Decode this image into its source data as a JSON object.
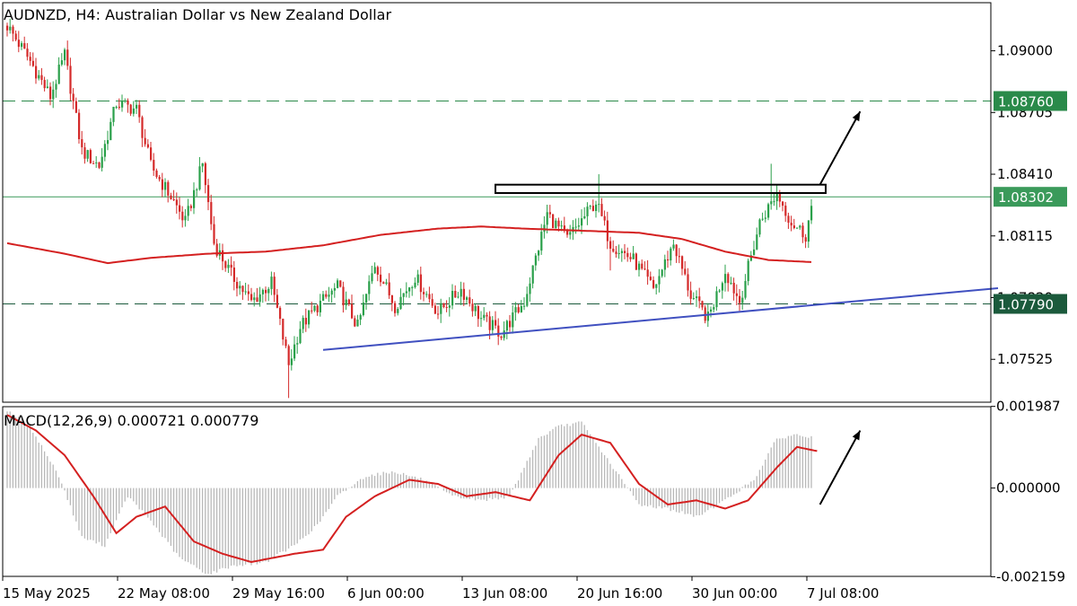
{
  "chart_data": {
    "type": "candlestick",
    "title": "AUDNZD, H4:  Australian Dollar vs New Zealand Dollar",
    "symbol": "AUDNZD",
    "timeframe": "H4",
    "description": "Australian Dollar vs New Zealand Dollar",
    "ylim": [
      1.0732,
      1.0923
    ],
    "y_ticks": [
      "1.09000",
      "1.08705",
      "1.08410",
      "1.08115",
      "1.07820",
      "1.07525"
    ],
    "y_tick_values": [
      1.09,
      1.08705,
      1.0841,
      1.08115,
      1.0782,
      1.07525
    ],
    "x_ticks": [
      "15 May 2025",
      "22 May 08:00",
      "29 May 16:00",
      "6 Jun 00:00",
      "13 Jun 08:00",
      "20 Jun 16:00",
      "30 Jun 00:00",
      "7 Jul 08:00"
    ],
    "x_tick_bars": [
      0,
      40,
      80,
      120,
      160,
      200,
      240,
      280
    ],
    "bar_count": 280,
    "horizontal_levels": [
      {
        "value": 1.0876,
        "label": "1.08760",
        "style": "dashed",
        "color": "#2a8a4a"
      },
      {
        "value": 1.0779,
        "label": "1.07790",
        "style": "dashed",
        "color": "#1b5a3c"
      },
      {
        "value": 1.08302,
        "label": "1.08302",
        "style": "solid",
        "color": "#3a9a5a"
      }
    ],
    "resistance_box": {
      "bar_start": 170,
      "bar_end": 285,
      "y_top": 1.0836,
      "y_bottom": 1.0832
    },
    "trendline": {
      "bar_start": 110,
      "y_start": 1.0757,
      "bar_end": 345,
      "y_end": 1.07865,
      "color": "#4050c0"
    },
    "moving_average": {
      "color": "#d42020",
      "points": [
        [
          0,
          1.0808
        ],
        [
          20,
          1.0803
        ],
        [
          35,
          1.07985
        ],
        [
          50,
          1.0801
        ],
        [
          70,
          1.0803
        ],
        [
          90,
          1.0804
        ],
        [
          110,
          1.0807
        ],
        [
          130,
          1.0812
        ],
        [
          150,
          1.0815
        ],
        [
          165,
          1.0816
        ],
        [
          180,
          1.0815
        ],
        [
          200,
          1.0814
        ],
        [
          220,
          1.0813
        ],
        [
          235,
          1.081
        ],
        [
          250,
          1.0804
        ],
        [
          265,
          1.08
        ],
        [
          280,
          1.0799
        ]
      ]
    },
    "candles": {
      "up_color": "#2aa04a",
      "down_color": "#d42a2a",
      "anchors": [
        [
          0,
          1.0912
        ],
        [
          8,
          1.0895
        ],
        [
          15,
          1.0878
        ],
        [
          20,
          1.0898
        ],
        [
          26,
          1.0852
        ],
        [
          32,
          1.0845
        ],
        [
          38,
          1.0875
        ],
        [
          45,
          1.0872
        ],
        [
          50,
          1.0845
        ],
        [
          58,
          1.0828
        ],
        [
          62,
          1.0818
        ],
        [
          68,
          1.0846
        ],
        [
          72,
          1.0808
        ],
        [
          78,
          1.0793
        ],
        [
          85,
          1.078
        ],
        [
          92,
          1.0789
        ],
        [
          98,
          1.075
        ],
        [
          102,
          1.0768
        ],
        [
          108,
          1.0778
        ],
        [
          115,
          1.0787
        ],
        [
          122,
          1.0768
        ],
        [
          128,
          1.0798
        ],
        [
          135,
          1.0778
        ],
        [
          142,
          1.0792
        ],
        [
          150,
          1.0775
        ],
        [
          158,
          1.0786
        ],
        [
          165,
          1.0772
        ],
        [
          172,
          1.0765
        ],
        [
          180,
          1.078
        ],
        [
          188,
          1.0822
        ],
        [
          195,
          1.081
        ],
        [
          205,
          1.0828
        ],
        [
          210,
          1.0808
        ],
        [
          218,
          1.08
        ],
        [
          225,
          1.0786
        ],
        [
          232,
          1.0808
        ],
        [
          238,
          1.0783
        ],
        [
          244,
          1.0772
        ],
        [
          250,
          1.0795
        ],
        [
          255,
          1.078
        ],
        [
          262,
          1.0818
        ],
        [
          268,
          1.0832
        ],
        [
          273,
          1.0818
        ],
        [
          278,
          1.0812
        ],
        [
          280,
          1.0825
        ]
      ],
      "lows": [
        [
          98,
          1.0734
        ],
        [
          210,
          1.0795
        ],
        [
          244,
          1.0768
        ]
      ],
      "highs": [
        [
          206,
          1.0841
        ],
        [
          266,
          1.0846
        ]
      ]
    },
    "arrow_price": {
      "from": [
        283,
        1.0836
      ],
      "to": [
        297,
        1.0871
      ]
    },
    "macd": {
      "label": "MACD(12,26,9) 0.000721 0.000779",
      "params": "12,26,9",
      "value": 0.000721,
      "signal_value": 0.000779,
      "ylim": [
        -0.00215,
        0.00198
      ],
      "y_ticks": [
        "0.001987",
        "0.000000",
        "-0.002159"
      ],
      "y_tick_values": [
        0.001987,
        0.0,
        -0.002159
      ],
      "histogram_color": "#b8b8b8",
      "signal_color": "#d42020",
      "signal_anchors": [
        [
          0,
          0.00178
        ],
        [
          10,
          0.0014
        ],
        [
          20,
          0.0008
        ],
        [
          30,
          -0.0002
        ],
        [
          38,
          -0.0011
        ],
        [
          45,
          -0.0007
        ],
        [
          55,
          -0.00045
        ],
        [
          65,
          -0.0013
        ],
        [
          75,
          -0.0016
        ],
        [
          85,
          -0.0018
        ],
        [
          100,
          -0.0016
        ],
        [
          110,
          -0.0015
        ],
        [
          118,
          -0.0007
        ],
        [
          128,
          -0.0002
        ],
        [
          140,
          0.0002
        ],
        [
          150,
          0.0001
        ],
        [
          160,
          -0.0002
        ],
        [
          170,
          -0.0001
        ],
        [
          182,
          -0.0003
        ],
        [
          192,
          0.0008
        ],
        [
          200,
          0.0013
        ],
        [
          210,
          0.0011
        ],
        [
          220,
          0.0001
        ],
        [
          230,
          -0.0004
        ],
        [
          240,
          -0.0003
        ],
        [
          250,
          -0.0005
        ],
        [
          258,
          -0.0003
        ],
        [
          268,
          0.0005
        ],
        [
          275,
          0.001
        ],
        [
          282,
          0.0009
        ]
      ],
      "hist_anchors": [
        [
          0,
          0.0019
        ],
        [
          8,
          0.0015
        ],
        [
          18,
          0.0003
        ],
        [
          26,
          -0.0012
        ],
        [
          34,
          -0.0014
        ],
        [
          42,
          -0.0002
        ],
        [
          50,
          -0.0008
        ],
        [
          60,
          -0.0017
        ],
        [
          70,
          -0.0021
        ],
        [
          78,
          -0.0019
        ],
        [
          90,
          -0.0018
        ],
        [
          100,
          -0.0014
        ],
        [
          108,
          -0.0009
        ],
        [
          115,
          -0.0002
        ],
        [
          125,
          0.0003
        ],
        [
          135,
          0.0004
        ],
        [
          145,
          0.0002
        ],
        [
          155,
          -0.0002
        ],
        [
          165,
          -0.0003
        ],
        [
          175,
          -0.0002
        ],
        [
          185,
          0.0012
        ],
        [
          192,
          0.0015
        ],
        [
          200,
          0.0016
        ],
        [
          210,
          0.0006
        ],
        [
          220,
          -0.0004
        ],
        [
          230,
          -0.0005
        ],
        [
          240,
          -0.0007
        ],
        [
          250,
          -0.0003
        ],
        [
          260,
          0.0002
        ],
        [
          268,
          0.0012
        ],
        [
          275,
          0.0013
        ],
        [
          282,
          0.0012
        ]
      ]
    },
    "arrow_macd": {
      "from": [
        283,
        -0.0004
      ],
      "to": [
        297,
        0.0014
      ]
    }
  }
}
